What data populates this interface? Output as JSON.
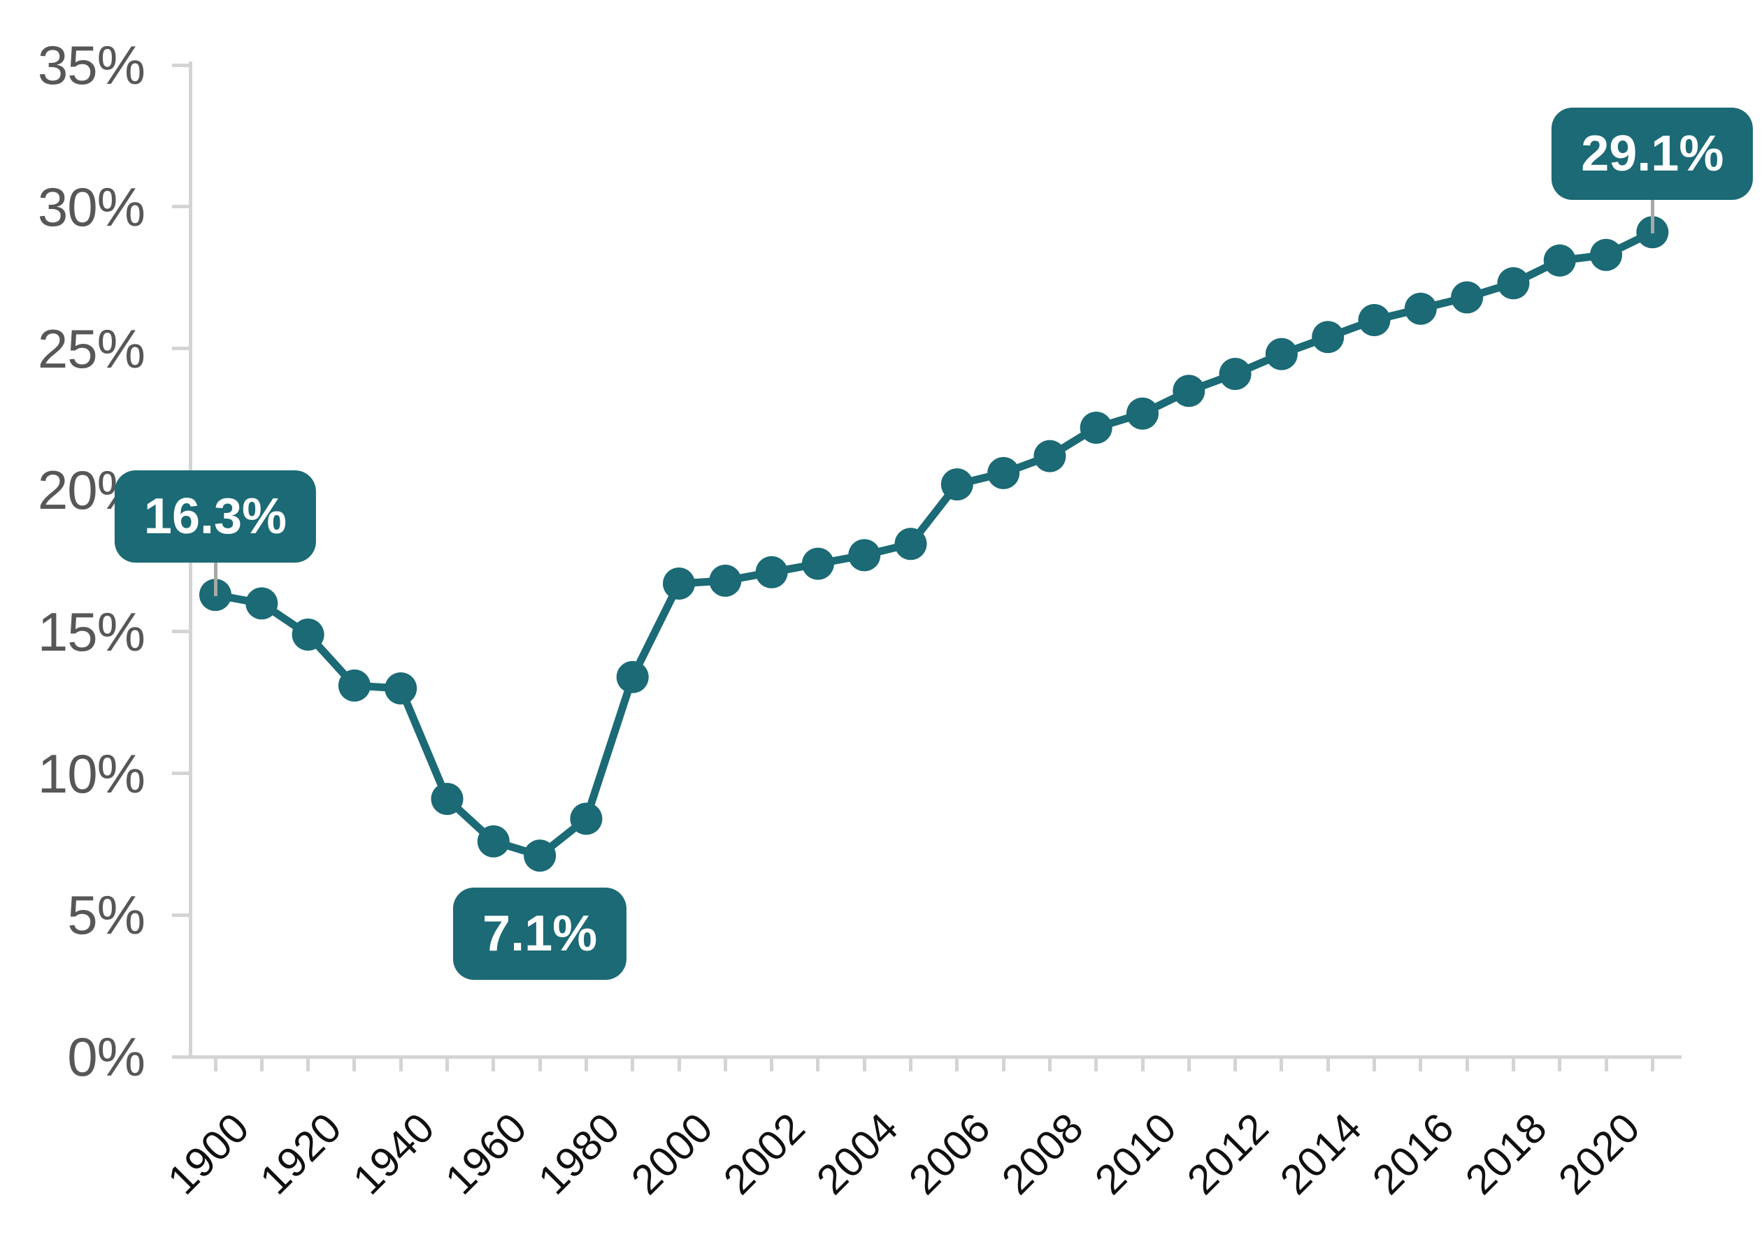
{
  "chart_data": {
    "type": "line",
    "title": "",
    "xlabel": "",
    "ylabel": "",
    "ylim": [
      0,
      35
    ],
    "grid": false,
    "legend": false,
    "categories": [
      "1900",
      "1910",
      "1920",
      "1930",
      "1940",
      "1950",
      "1960",
      "1970",
      "1980",
      "1990",
      "2000",
      "2001",
      "2002",
      "2003",
      "2004",
      "2005",
      "2006",
      "2007",
      "2008",
      "2009",
      "2010",
      "2011",
      "2012",
      "2013",
      "2014",
      "2015",
      "2016",
      "2017",
      "2018",
      "2019",
      "2020",
      "2021"
    ],
    "values": [
      16.3,
      16.0,
      14.9,
      13.1,
      13.0,
      9.1,
      7.6,
      7.1,
      8.4,
      13.4,
      16.7,
      16.8,
      17.1,
      17.4,
      17.7,
      18.1,
      20.2,
      20.6,
      21.2,
      22.2,
      22.7,
      23.5,
      24.1,
      24.8,
      25.4,
      26.0,
      26.4,
      26.8,
      27.3,
      28.1,
      28.3,
      29.1
    ],
    "x_tick_labels": [
      "1900",
      "1920",
      "1940",
      "1960",
      "1980",
      "2000",
      "2002",
      "2004",
      "2006",
      "2008",
      "2010",
      "2012",
      "2014",
      "2016",
      "2018",
      "2020"
    ],
    "y_tick_labels": [
      "0%",
      "5%",
      "10%",
      "15%",
      "20%",
      "25%",
      "30%",
      "35%"
    ],
    "annotations": [
      {
        "label": "16.3%",
        "category": "1900",
        "position": "above",
        "connector": true
      },
      {
        "label": "7.1%",
        "category": "1970",
        "position": "below",
        "connector": false
      },
      {
        "label": "29.1%",
        "category": "2021",
        "position": "above",
        "connector": true
      }
    ],
    "colors": {
      "series": "#1b6a75",
      "callout_bg": "#1b6a75",
      "callout_text": "#ffffff",
      "axis": "#d4d4d4",
      "connector": "#a8a8a8",
      "y_label": "#575757",
      "x_label": "#101010"
    }
  }
}
